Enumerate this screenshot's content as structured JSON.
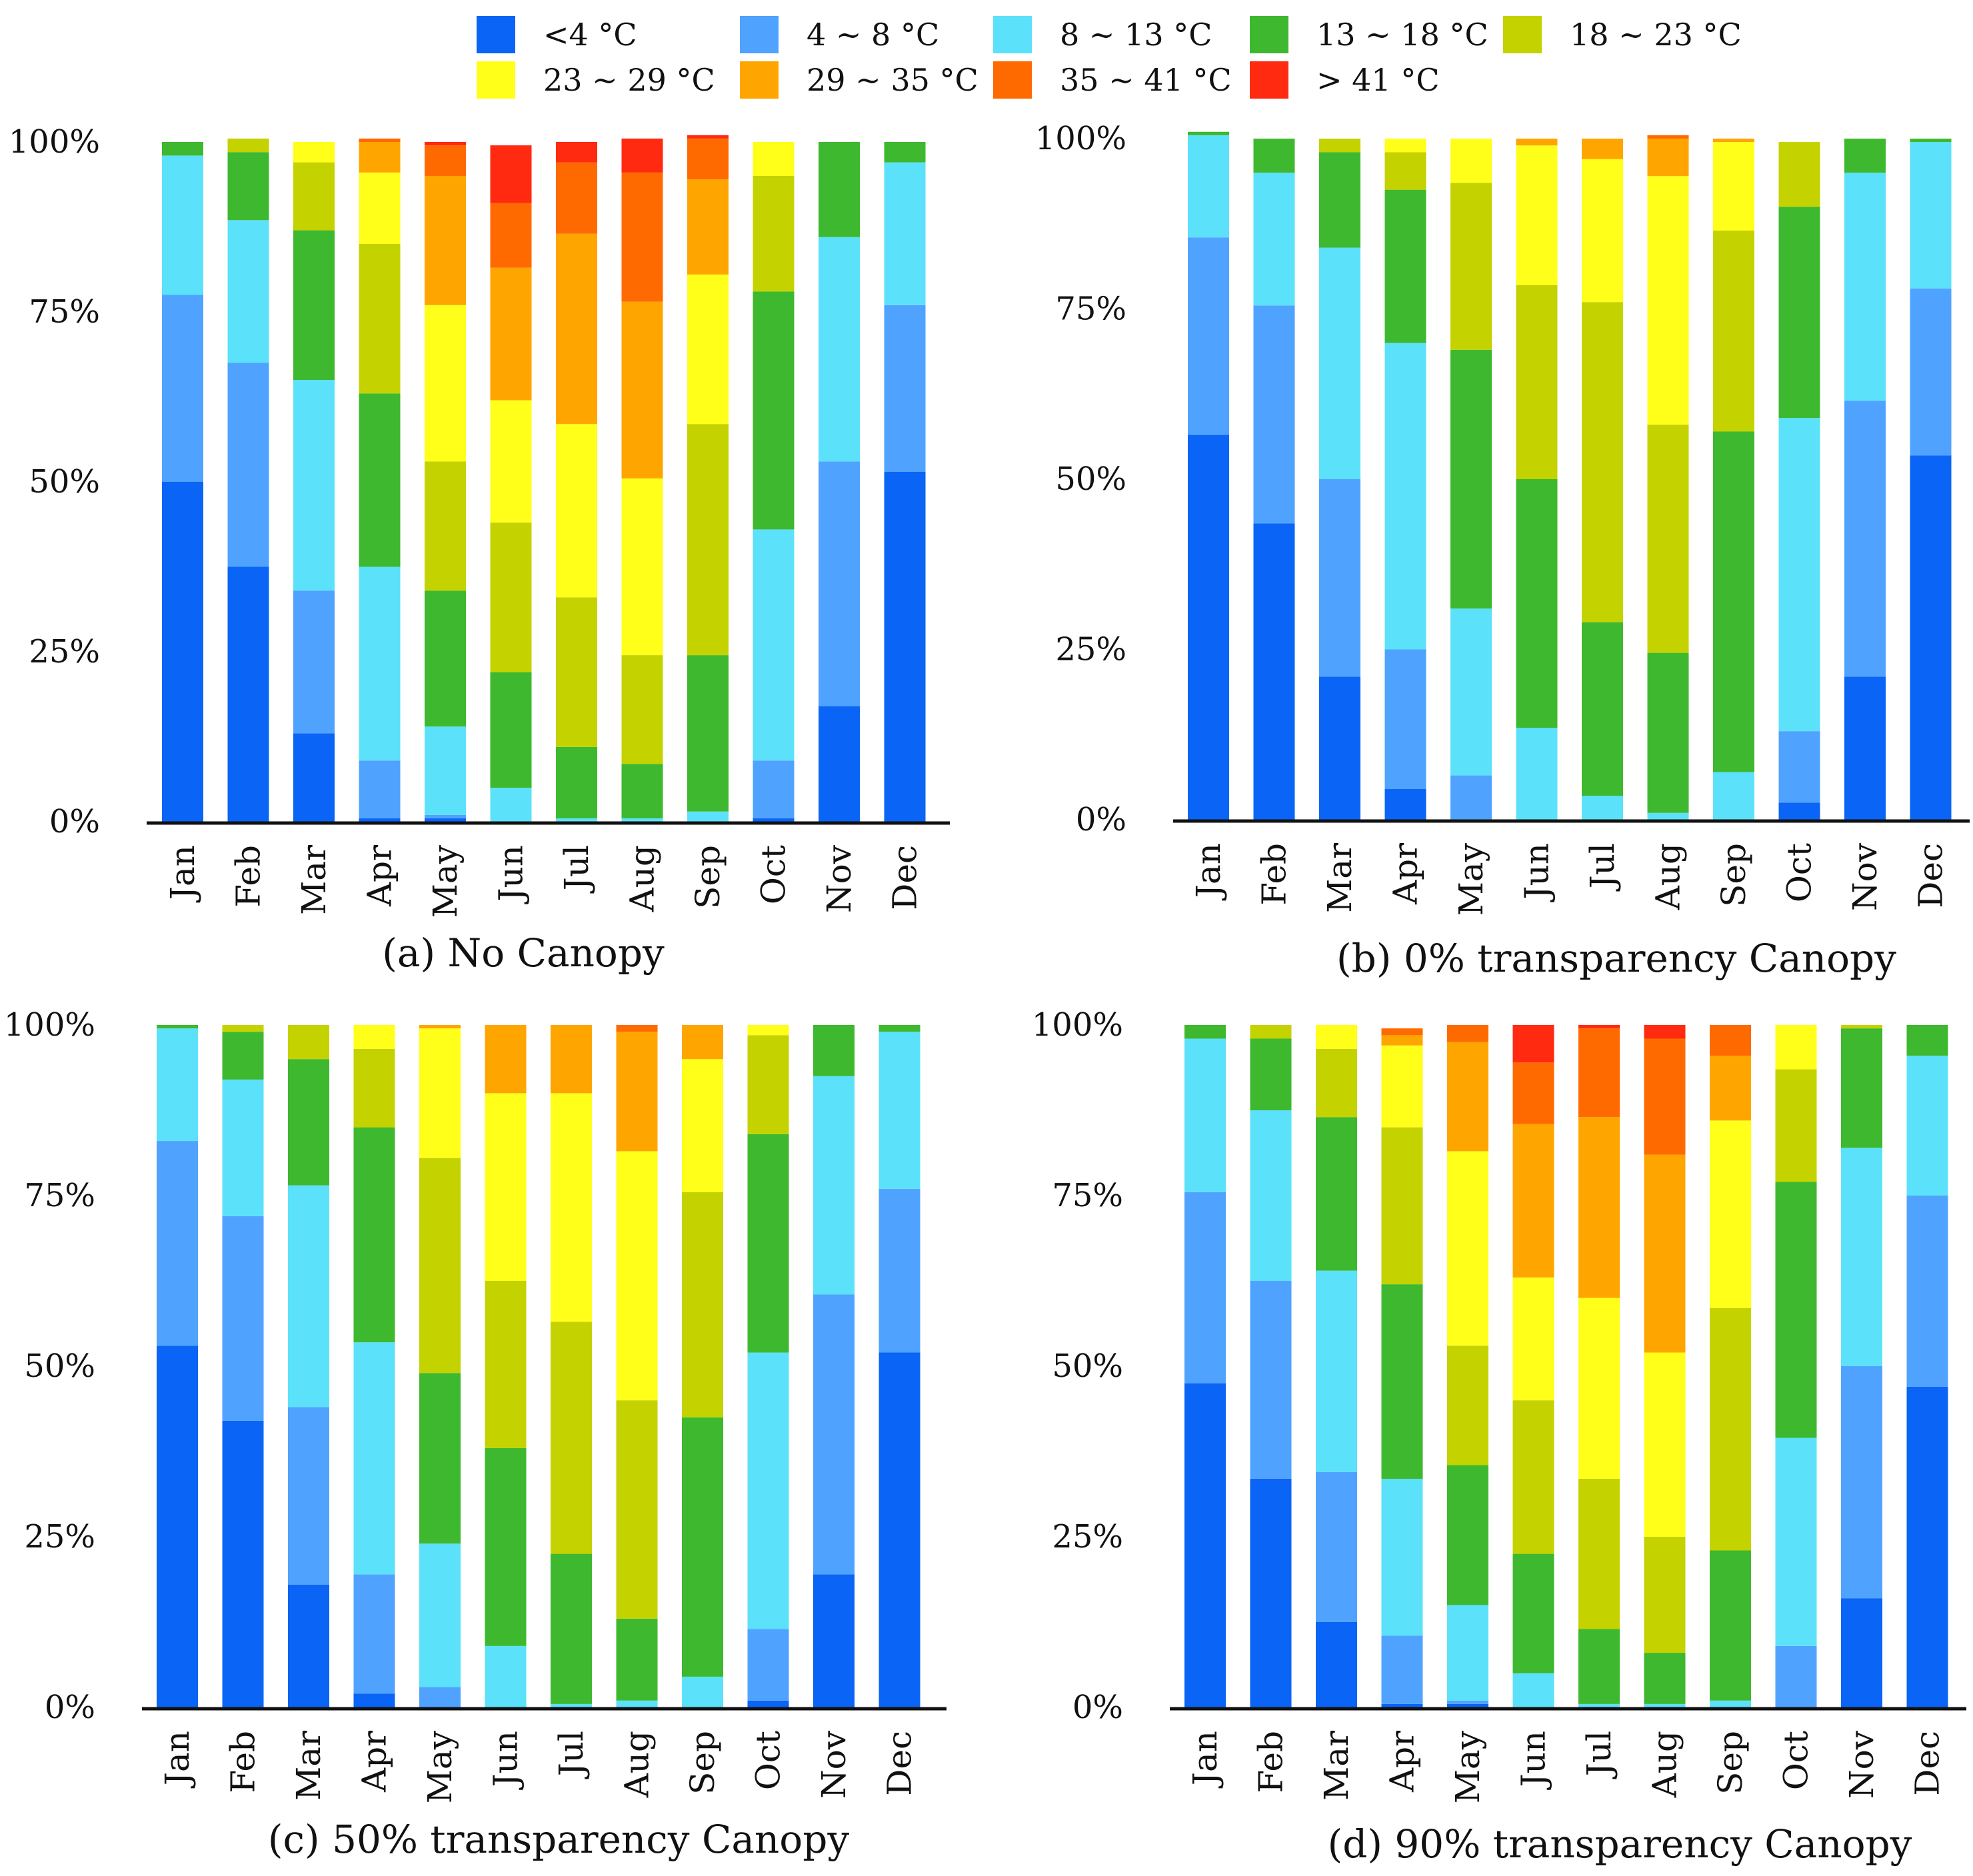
{
  "chart_data": {
    "type": "bar",
    "stacked": true,
    "normalized": true,
    "categories": [
      "Jan",
      "Feb",
      "Mar",
      "Apr",
      "May",
      "Jun",
      "Jul",
      "Aug",
      "Sep",
      "Oct",
      "Nov",
      "Dec"
    ],
    "yticks": [
      "0%",
      "25%",
      "50%",
      "75%",
      "100%"
    ],
    "ylim": [
      0,
      100
    ],
    "legend": {
      "placement": "top",
      "entries": [
        {
          "label": "<4 °C",
          "color": "#0a64f5"
        },
        {
          "label": "4 ~ 8 °C",
          "color": "#4fa3ff"
        },
        {
          "label": "8 ~ 13 °C",
          "color": "#5ce1fa"
        },
        {
          "label": "13 ~ 18 °C",
          "color": "#3eb82e"
        },
        {
          "label": "18 ~ 23 °C",
          "color": "#c4d200"
        },
        {
          "label": "23 ~  29 °C",
          "color": "#ffff1a"
        },
        {
          "label": "29 ~ 35 °C",
          "color": "#ffa500"
        },
        {
          "label": "35 ~ 41 °C",
          "color": "#ff6a00"
        },
        {
          "label": "> 41 °C",
          "color": "#ff2a10"
        }
      ]
    },
    "panels": [
      {
        "title": "(a) No Canopy",
        "values": [
          [
            50,
            27.5,
            20.5,
            2,
            0,
            0,
            0,
            0,
            0
          ],
          [
            37.5,
            30,
            21,
            10,
            2,
            0,
            0,
            0,
            0
          ],
          [
            13,
            21,
            31,
            22,
            10,
            3,
            0,
            0,
            0
          ],
          [
            0.5,
            8.5,
            28.5,
            25.5,
            22,
            10.5,
            4.5,
            0.5,
            0
          ],
          [
            0.5,
            0.5,
            13,
            20,
            19,
            23,
            19,
            4.5,
            0.5
          ],
          [
            0,
            0,
            5,
            17,
            22,
            18,
            19.5,
            9.5,
            8.5
          ],
          [
            0,
            0,
            0.5,
            10.5,
            22,
            25.5,
            28,
            10.5,
            3
          ],
          [
            0,
            0,
            0.5,
            8,
            16,
            26,
            26,
            19,
            5
          ],
          [
            0,
            0,
            1.5,
            23,
            34,
            22,
            14,
            6,
            0.5
          ],
          [
            0.5,
            8.5,
            34,
            35,
            17,
            5,
            0,
            0,
            0
          ],
          [
            17,
            36,
            33,
            14,
            0,
            0,
            0,
            0,
            0
          ],
          [
            51.5,
            24.5,
            21,
            3,
            0,
            0,
            0,
            0,
            0
          ]
        ]
      },
      {
        "title": "(b) 0% transparency Canopy",
        "values": [
          [
            56.5,
            29,
            15,
            0.5,
            0,
            0,
            0,
            0,
            0
          ],
          [
            43.5,
            32,
            19.5,
            5,
            0,
            0,
            0,
            0,
            0
          ],
          [
            21,
            29,
            34,
            14,
            2,
            0,
            0,
            0,
            0
          ],
          [
            4.5,
            20.5,
            45,
            22.5,
            5.5,
            2,
            0,
            0,
            0
          ],
          [
            0,
            6.5,
            24.5,
            38,
            24.5,
            6.5,
            0,
            0,
            0
          ],
          [
            0,
            0,
            13.5,
            36.5,
            28.5,
            20.5,
            1,
            0,
            0
          ],
          [
            0,
            0,
            3.5,
            25.5,
            47,
            21,
            3,
            0,
            0
          ],
          [
            0,
            0,
            1,
            23.5,
            33.5,
            36.5,
            5.5,
            0.5,
            0
          ],
          [
            0,
            0,
            7,
            50,
            29.5,
            13,
            0.5,
            0,
            0
          ],
          [
            2.5,
            10.5,
            46,
            31,
            9.5,
            0,
            0,
            0,
            0
          ],
          [
            21,
            40.5,
            33.5,
            5,
            0,
            0,
            0,
            0,
            0
          ],
          [
            53.5,
            24.5,
            21.5,
            0.5,
            0,
            0,
            0,
            0,
            0
          ]
        ]
      },
      {
        "title": "(c) 50% transparency Canopy",
        "values": [
          [
            53,
            30,
            16.5,
            0.5,
            0,
            0,
            0,
            0,
            0
          ],
          [
            42,
            30,
            20,
            7,
            1,
            0,
            0,
            0,
            0
          ],
          [
            18,
            26,
            32.5,
            18.5,
            5,
            0,
            0,
            0,
            0
          ],
          [
            2,
            17.5,
            34,
            31.5,
            11.5,
            3.5,
            0,
            0,
            0
          ],
          [
            0,
            3,
            21,
            25,
            31.5,
            19,
            0.5,
            0,
            0
          ],
          [
            0,
            0,
            9,
            29,
            24.5,
            27.5,
            10,
            0,
            0
          ],
          [
            0,
            0,
            0.5,
            22,
            34,
            33.5,
            10,
            0,
            0
          ],
          [
            0,
            0,
            1,
            12,
            32,
            36.5,
            17.5,
            1,
            0
          ],
          [
            0,
            0,
            4.5,
            38,
            33,
            19.5,
            5,
            0,
            0
          ],
          [
            1,
            10.5,
            40.5,
            32,
            14.5,
            1.5,
            0,
            0,
            0
          ],
          [
            19.5,
            41,
            32,
            7.5,
            0,
            0,
            0,
            0,
            0
          ],
          [
            52,
            24,
            23,
            1,
            0,
            0,
            0,
            0,
            0
          ]
        ]
      },
      {
        "title": "(d) 90% transparency Canopy",
        "values": [
          [
            47.5,
            28,
            22.5,
            2,
            0,
            0,
            0,
            0,
            0
          ],
          [
            33.5,
            29,
            25,
            10.5,
            2,
            0,
            0,
            0,
            0
          ],
          [
            12.5,
            22,
            29.5,
            22.5,
            10,
            3.5,
            0,
            0,
            0
          ],
          [
            0.5,
            10,
            23,
            28.5,
            23,
            12,
            1.5,
            1,
            0
          ],
          [
            0.5,
            0.5,
            14,
            20.5,
            17.5,
            28.5,
            16,
            2.5,
            0
          ],
          [
            0,
            0,
            5,
            17.5,
            22.5,
            18,
            22.5,
            9,
            5.5
          ],
          [
            0,
            0,
            0.5,
            11,
            22,
            26.5,
            26.5,
            13,
            0.5
          ],
          [
            0,
            0,
            0.5,
            7.5,
            17,
            27,
            29,
            17,
            2
          ],
          [
            0,
            0,
            1,
            22,
            35.5,
            27.5,
            9.5,
            4.5,
            0
          ],
          [
            0,
            9,
            30.5,
            37.5,
            16.5,
            6.5,
            0,
            0,
            0
          ],
          [
            16,
            34,
            32,
            17.5,
            0.5,
            0,
            0,
            0,
            0
          ],
          [
            47,
            28,
            20.5,
            4.5,
            0,
            0,
            0,
            0,
            0
          ]
        ]
      }
    ]
  }
}
